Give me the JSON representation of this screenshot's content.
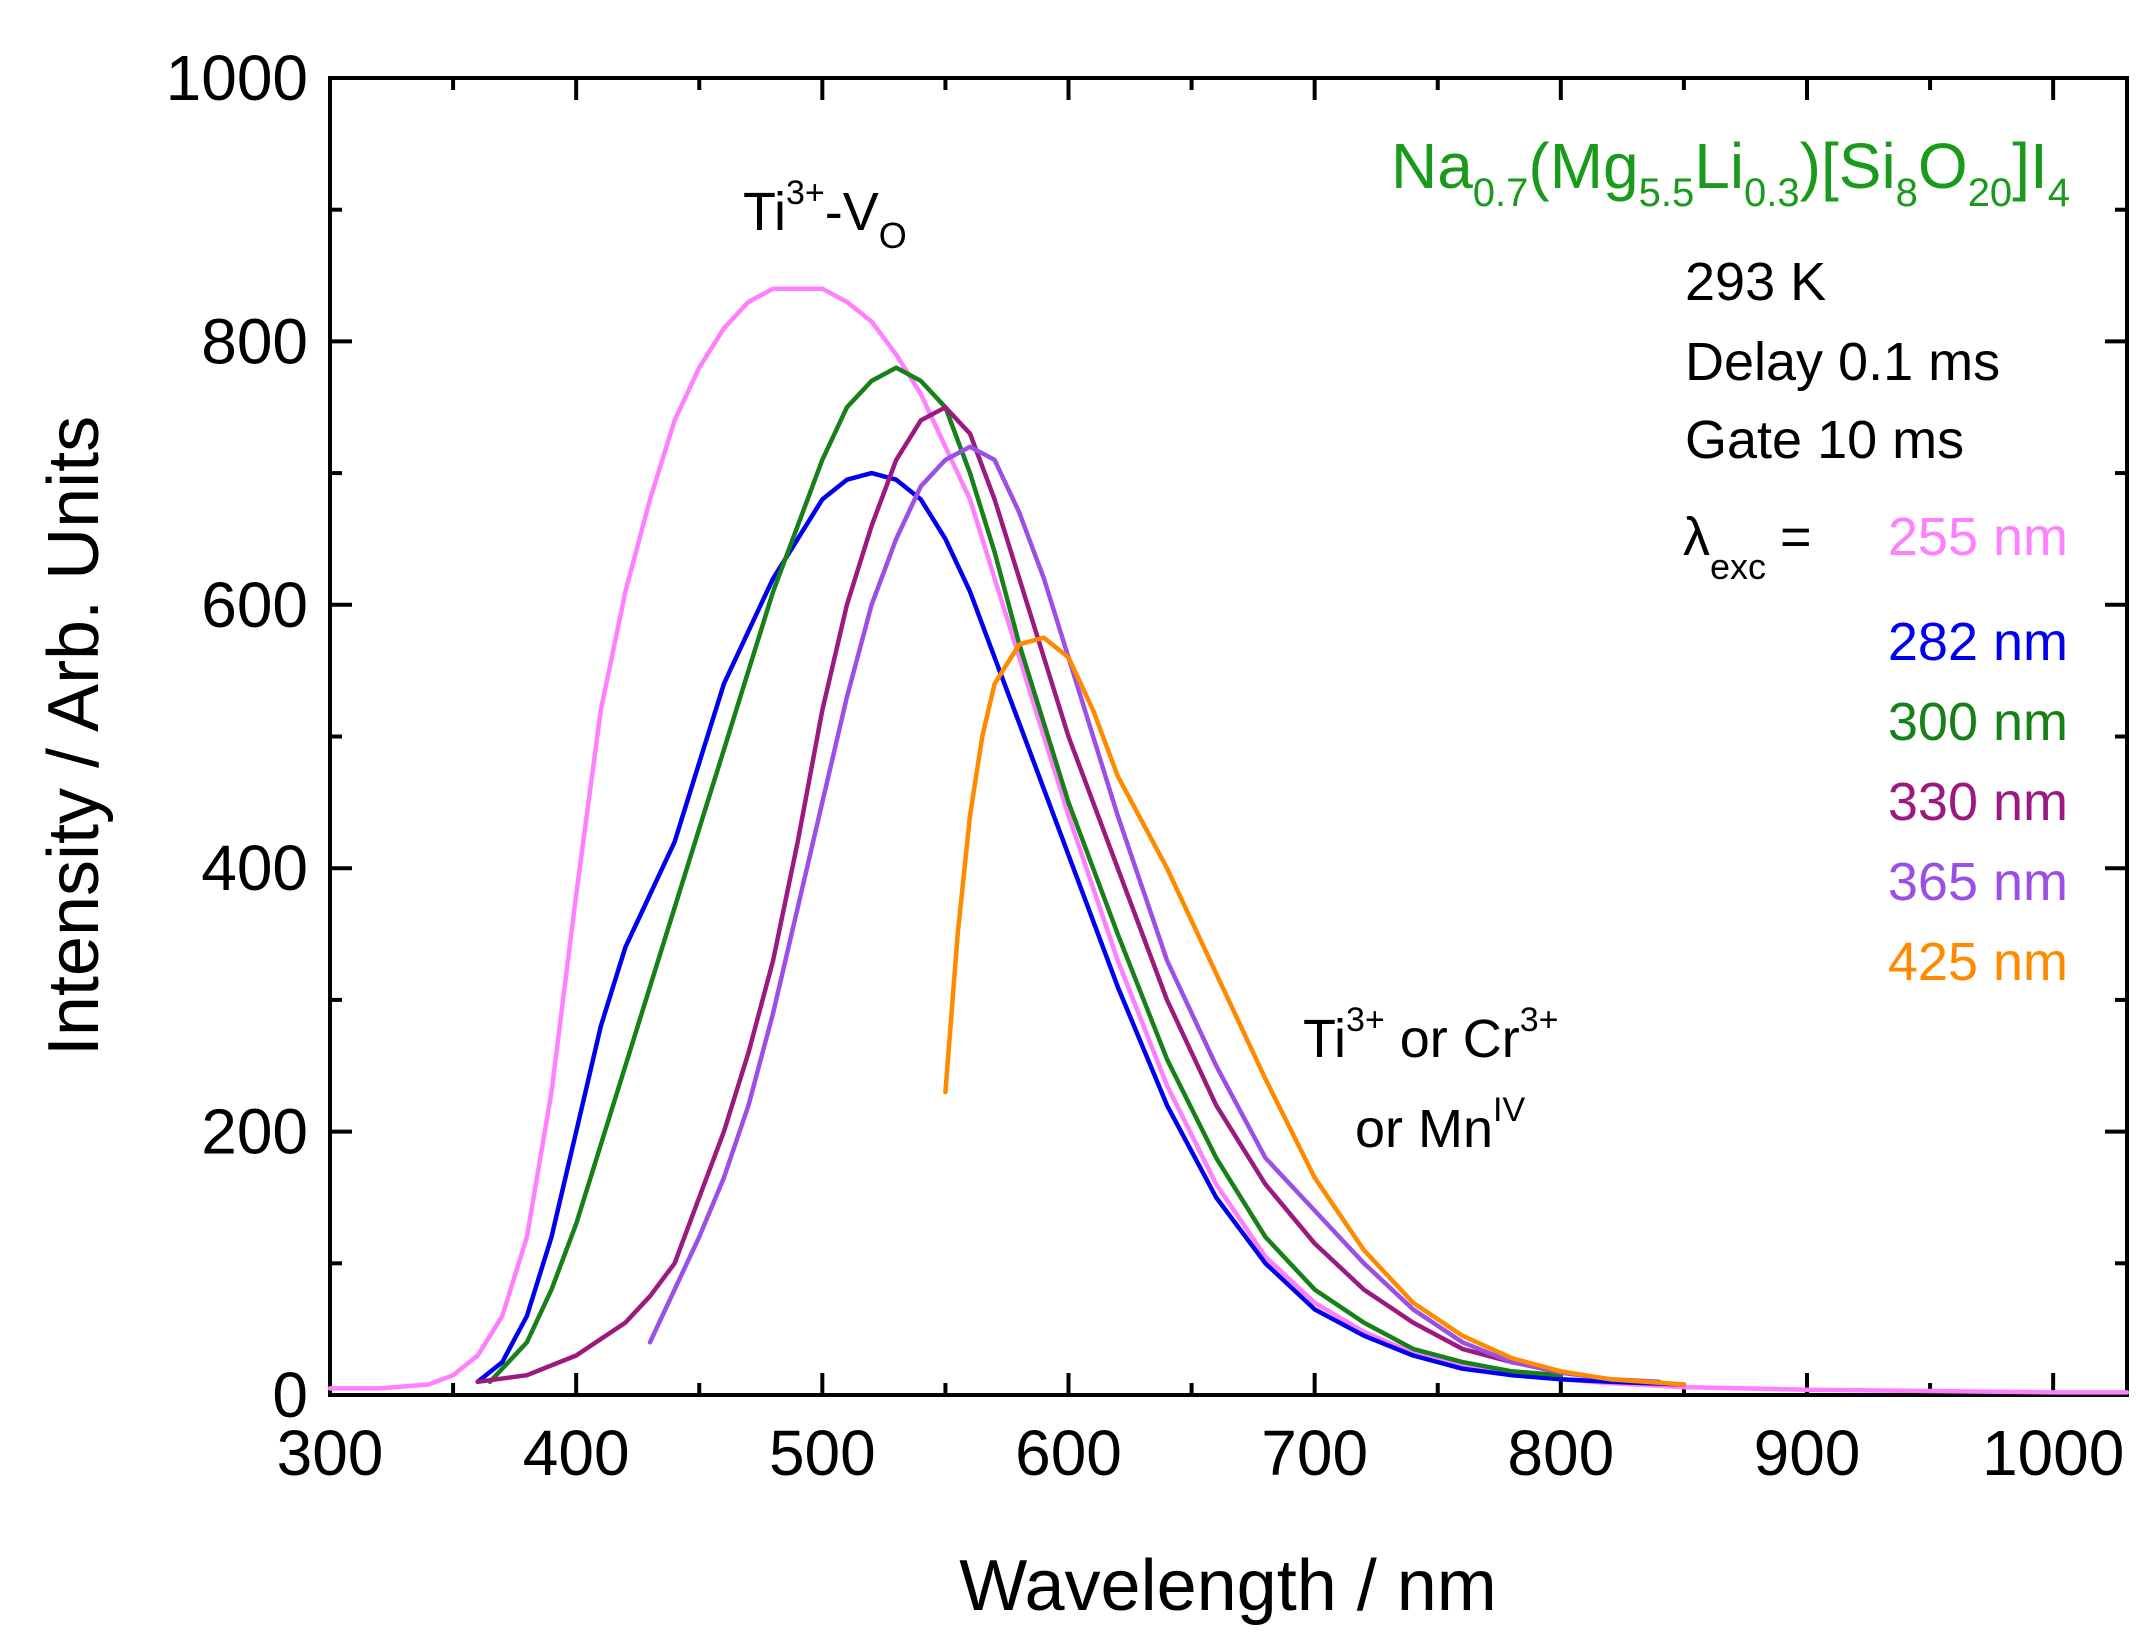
{
  "chart_data": {
    "type": "line",
    "title": "",
    "xlabel": "Wavelength / nm",
    "ylabel": "Intensity / Arb. Units",
    "xlim": [
      300,
      1030
    ],
    "ylim": [
      0,
      1000
    ],
    "xticks": [
      300,
      400,
      500,
      600,
      700,
      800,
      900,
      1000
    ],
    "yticks": [
      0,
      200,
      400,
      600,
      800,
      1000
    ],
    "grid": false,
    "legend_position": "top-right",
    "formula": {
      "parts": [
        {
          "t": "Na",
          "sub": false
        },
        {
          "t": "0.7",
          "sub": true
        },
        {
          "t": "(Mg",
          "sub": false
        },
        {
          "t": "5.5",
          "sub": true
        },
        {
          "t": "Li",
          "sub": false
        },
        {
          "t": "0.3",
          "sub": true
        },
        {
          "t": ")[Si",
          "sub": false
        },
        {
          "t": "8",
          "sub": true
        },
        {
          "t": "O",
          "sub": false
        },
        {
          "t": "20",
          "sub": true
        },
        {
          "t": "]I",
          "sub": false
        },
        {
          "t": "4",
          "sub": true
        }
      ],
      "color": "#1a9a1a"
    },
    "conditions": [
      "293 K",
      "Delay 0.1 ms",
      "Gate 10 ms"
    ],
    "lambda_label": {
      "symbol": "λ",
      "sub": "exc",
      "eq": "="
    },
    "annotations": {
      "ti_vo": {
        "base": "Ti",
        "sup": "3+",
        "dash": "-V",
        "sub": "O"
      },
      "ti_cr": {
        "base1": "Ti",
        "sup1": "3+",
        "mid": " or Cr",
        "sup2": "3+"
      },
      "mn": {
        "base": "or Mn",
        "sup": "IV"
      }
    },
    "series": [
      {
        "name": "255 nm",
        "color": "#ff7fff",
        "x": [
          300,
          320,
          340,
          350,
          360,
          370,
          380,
          390,
          400,
          410,
          420,
          430,
          440,
          450,
          460,
          470,
          480,
          490,
          500,
          510,
          520,
          530,
          540,
          550,
          560,
          570,
          580,
          590,
          600,
          620,
          640,
          660,
          680,
          700,
          720,
          740,
          760,
          780,
          800,
          820,
          850,
          900,
          950,
          1000,
          1030
        ],
        "y": [
          5,
          5,
          8,
          15,
          30,
          60,
          120,
          230,
          380,
          520,
          610,
          680,
          740,
          780,
          810,
          830,
          840,
          840,
          840,
          830,
          815,
          790,
          760,
          720,
          680,
          620,
          560,
          500,
          440,
          330,
          235,
          160,
          105,
          70,
          48,
          32,
          22,
          16,
          12,
          9,
          6,
          4,
          3,
          2,
          2
        ]
      },
      {
        "name": "282 nm",
        "color": "#0000ee",
        "x": [
          360,
          370,
          380,
          390,
          400,
          410,
          420,
          430,
          440,
          450,
          460,
          470,
          480,
          490,
          500,
          510,
          520,
          530,
          540,
          550,
          560,
          570,
          580,
          590,
          600,
          620,
          640,
          660,
          680,
          700,
          720,
          740,
          760,
          780,
          800,
          820,
          850
        ],
        "y": [
          10,
          25,
          60,
          120,
          200,
          280,
          340,
          380,
          420,
          480,
          540,
          580,
          620,
          650,
          680,
          695,
          700,
          695,
          680,
          650,
          610,
          560,
          510,
          460,
          410,
          310,
          220,
          150,
          100,
          65,
          45,
          30,
          20,
          15,
          12,
          10,
          8
        ]
      },
      {
        "name": "300 nm",
        "color": "#188018",
        "x": [
          365,
          380,
          390,
          400,
          410,
          420,
          430,
          440,
          450,
          460,
          470,
          480,
          490,
          500,
          510,
          520,
          530,
          540,
          550,
          560,
          570,
          580,
          590,
          600,
          620,
          640,
          660,
          680,
          700,
          720,
          740,
          760,
          780,
          800
        ],
        "y": [
          10,
          40,
          80,
          130,
          190,
          250,
          310,
          370,
          430,
          490,
          550,
          610,
          660,
          710,
          750,
          770,
          780,
          770,
          750,
          700,
          640,
          570,
          510,
          450,
          350,
          255,
          180,
          120,
          80,
          55,
          35,
          25,
          18,
          15
        ]
      },
      {
        "name": "330 nm",
        "color": "#9c1a80",
        "x": [
          360,
          380,
          400,
          420,
          430,
          440,
          450,
          460,
          470,
          480,
          490,
          500,
          510,
          520,
          530,
          540,
          550,
          560,
          570,
          580,
          590,
          600,
          620,
          640,
          660,
          680,
          700,
          720,
          740,
          760,
          780,
          800
        ],
        "y": [
          10,
          15,
          30,
          55,
          75,
          100,
          150,
          200,
          260,
          330,
          420,
          520,
          600,
          660,
          710,
          740,
          750,
          730,
          680,
          620,
          560,
          500,
          400,
          300,
          220,
          160,
          115,
          80,
          55,
          35,
          25,
          18
        ]
      },
      {
        "name": "365 nm",
        "color": "#9b4fe6",
        "x": [
          430,
          440,
          450,
          460,
          470,
          480,
          490,
          500,
          510,
          520,
          530,
          540,
          550,
          560,
          570,
          580,
          590,
          600,
          620,
          640,
          660,
          680,
          700,
          720,
          740,
          760,
          780,
          800,
          820,
          840
        ],
        "y": [
          40,
          80,
          120,
          165,
          220,
          290,
          370,
          450,
          530,
          600,
          650,
          690,
          710,
          720,
          710,
          670,
          620,
          560,
          440,
          330,
          250,
          180,
          140,
          100,
          65,
          40,
          25,
          17,
          12,
          10
        ]
      },
      {
        "name": "425 nm",
        "color": "#ff8a00",
        "x": [
          550,
          555,
          560,
          565,
          570,
          580,
          590,
          600,
          610,
          620,
          640,
          660,
          680,
          700,
          720,
          740,
          760,
          780,
          800,
          820,
          850
        ],
        "y": [
          230,
          350,
          440,
          500,
          540,
          570,
          575,
          560,
          520,
          470,
          400,
          320,
          240,
          165,
          110,
          70,
          45,
          28,
          18,
          12,
          8
        ]
      }
    ]
  }
}
